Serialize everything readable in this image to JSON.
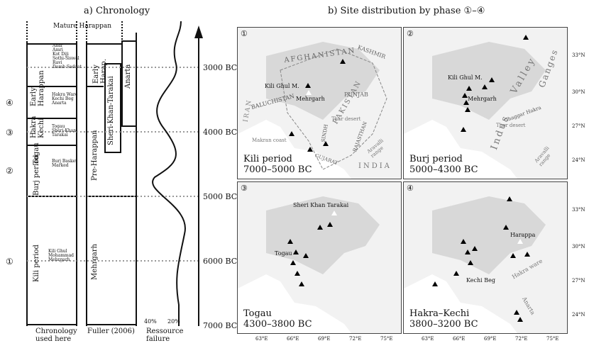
{
  "chronology_panel": {
    "title": "a) Chronology",
    "top_label": "Mature Harappan",
    "phase_numbers": [
      "④",
      "③",
      "②",
      "①"
    ],
    "columns": {
      "chronology_label": "Chronology\nused here",
      "fuller_label": "Fuller (2006)",
      "resource_label": "Ressource\nfailure"
    },
    "periods_here": [
      {
        "name": "Early\nHarappan",
        "sites": "Ahar\nAmri\nKot Diji\nSothi-Siswal\nRavi\nDamb Sadaat"
      },
      {
        "name": "Hakra\nKechi",
        "sites": "Hakra Ware\nKechi Beg\nAnarta"
      },
      {
        "name": "Togau",
        "sites": "Togau\nSheri-Khan-\nTarakai"
      },
      {
        "name": "Burj period",
        "sites": "Burj Basket\nMarked"
      },
      {
        "name": "Kili period",
        "sites": "Kili Ghul\nMohammad\nMehrgarh"
      }
    ],
    "fuller_periods": [
      "Early\nHarap.",
      "Pre-Harappan",
      "Mehrgarh"
    ],
    "sheri_label": "Sheri-Khan-Tarakai",
    "anarta_label": "Anarta",
    "resource_ticks": [
      "40%",
      "20%"
    ],
    "time_axis": [
      "3000 BC",
      "4000 BC",
      "5000 BC",
      "6000 BC",
      "7000 BC"
    ]
  },
  "maps_panel": {
    "title": "b) Site distribution by phase ①–④",
    "lat_ticks": [
      "33°N",
      "30°N",
      "27°N",
      "24°N"
    ],
    "lon_ticks": [
      "63°E",
      "66°E",
      "69°E",
      "72°E",
      "75°E"
    ],
    "maps": [
      {
        "num": "①",
        "caption1": "Kili period",
        "caption2": "7000–5000 BC",
        "labels": {
          "afghanistan": "AFGHANISTAN",
          "kashmir": "KASHMIR",
          "pakistan": "PAKISTAN",
          "punjab": "PUNJAB",
          "iran": "IRAN",
          "baluchistan": "BALUCHISTAN",
          "sindh": "SINDH",
          "thar": "Thar desert",
          "rajasthan": "RAJASTHAN",
          "aravalli": "Aravalli range",
          "makran": "Makran coast",
          "gujarat": "GUJARAT",
          "india": "INDIA",
          "kili": "Kili Ghul M.",
          "mehrgarh": "Mehrgarh"
        }
      },
      {
        "num": "②",
        "caption1": "Burj period",
        "caption2": "5000–4300 BC",
        "labels": {
          "kili": "Kili Ghul M.",
          "mehrgarh": "Mehrgarh",
          "indus": "Indus",
          "valley": "Valley",
          "ganges": "Ganges",
          "ghaggar": "Ghaggar Hakra",
          "thar": "Thar desert",
          "aravalli": "Aravalli range"
        }
      },
      {
        "num": "③",
        "caption1": "Togau",
        "caption2": "4300–3800 BC",
        "labels": {
          "sheri": "Sheri Khan Tarakai",
          "togau": "Togau"
        }
      },
      {
        "num": "④",
        "caption1": "Hakra–Kechi",
        "caption2": "3800–3200 BC",
        "labels": {
          "harappa": "Harappa",
          "kechi": "Kechi Beg",
          "hakra": "Hakra ware",
          "anarta": "Anarta"
        }
      }
    ]
  }
}
